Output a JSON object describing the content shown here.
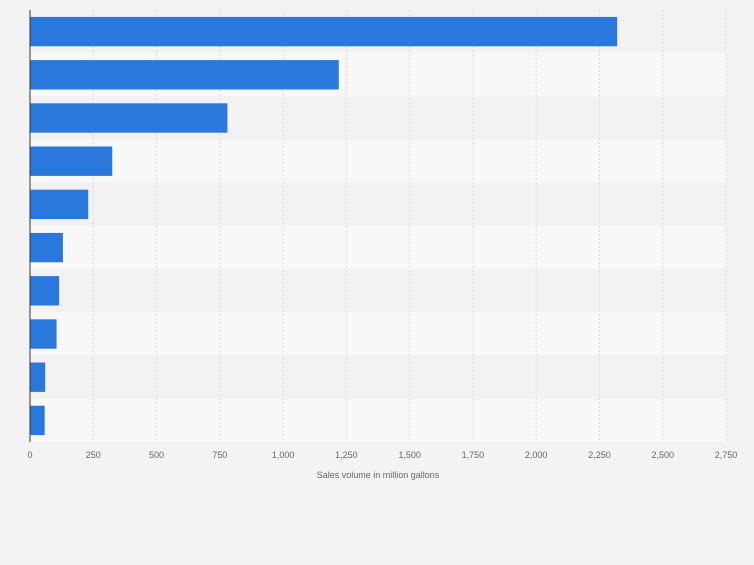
{
  "chart_data": {
    "type": "bar",
    "orientation": "horizontal",
    "categories": [
      "",
      "",
      "",
      "",
      "",
      "",
      "",
      "",
      "",
      ""
    ],
    "values": [
      2320,
      1220,
      780,
      325,
      230,
      130,
      115,
      105,
      60,
      58
    ],
    "xlabel": "Sales volume in million gallons",
    "ylabel": "",
    "xlim": [
      0,
      2750
    ],
    "x_ticks": [
      0,
      250,
      500,
      750,
      1000,
      1250,
      1500,
      1750,
      2000,
      2250,
      2500,
      2750
    ],
    "x_tick_labels": [
      "0",
      "250",
      "500",
      "750",
      "1,000",
      "1,250",
      "1,500",
      "1,750",
      "2,000",
      "2,250",
      "2,500",
      "2,750"
    ],
    "grid": true,
    "legend": "none",
    "colors": {
      "bar": "#2a78dc",
      "background": "#f3f3f3",
      "band_light": "#f8f8f8",
      "band_dark": "#f2f2f2",
      "gridline": "#d9d9d9",
      "axis": "#333333",
      "tick_text": "#666666"
    }
  }
}
